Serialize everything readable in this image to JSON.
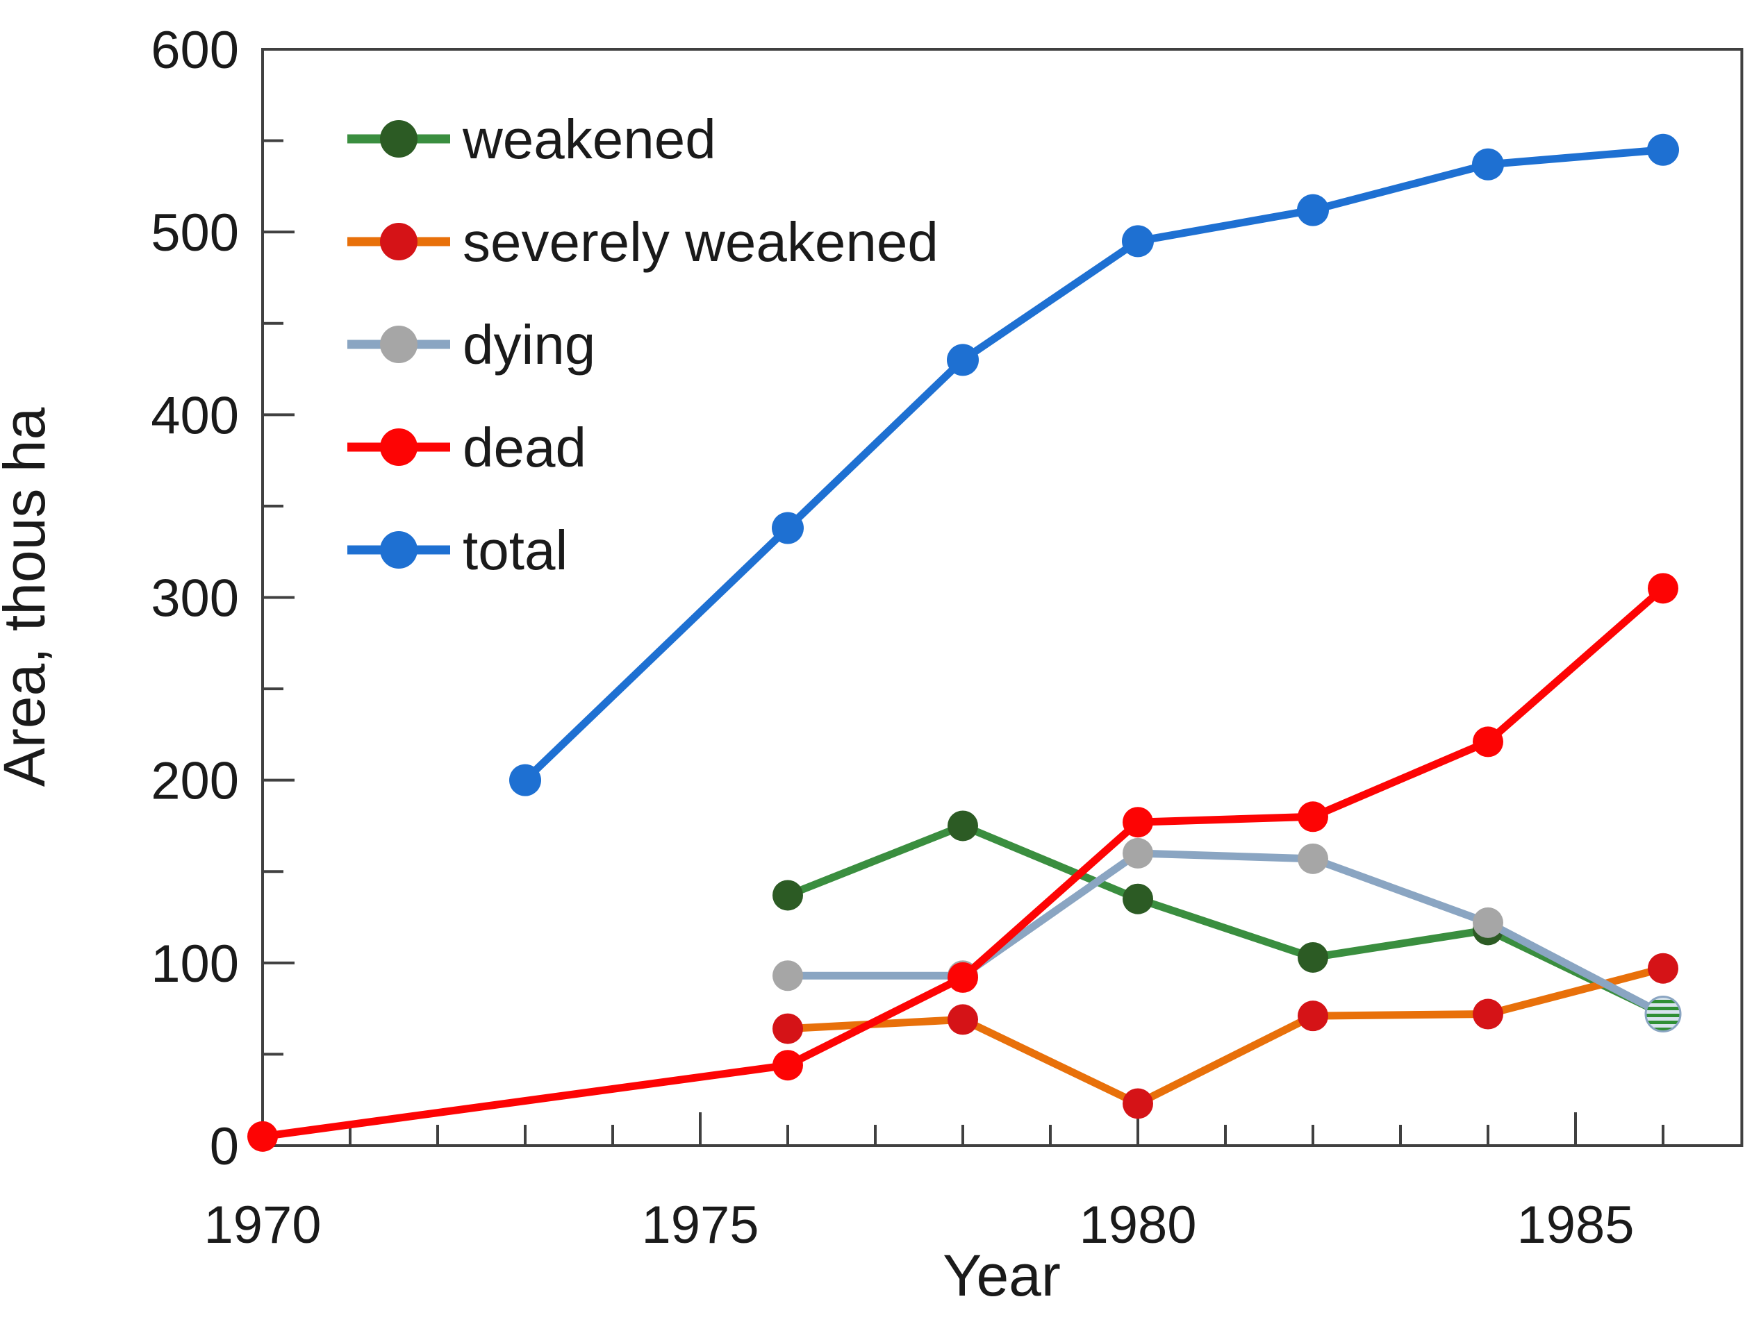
{
  "figure": {
    "background": "#ffffff"
  },
  "chart_data": {
    "type": "line",
    "title": "",
    "xlabel": "Year",
    "ylabel": "Area, thous ha",
    "xlim": [
      1970,
      1986.9
    ],
    "ylim": [
      0,
      600
    ],
    "grid": false,
    "legend_position": "top-left-inside",
    "axis_color": "#404040",
    "text_color": "#1a1a1a",
    "x_tick_years": [
      1970,
      1975,
      1980,
      1985
    ],
    "x_tick_labels": [
      "1970",
      "1975",
      "1980",
      "1985"
    ],
    "y_tick_values": [
      0,
      100,
      200,
      300,
      400,
      500,
      600
    ],
    "x_minor_tick_years": [
      1971,
      1972,
      1973,
      1974,
      1976,
      1977,
      1978,
      1979,
      1981,
      1982,
      1983,
      1984,
      1986
    ],
    "y_minor_tick_values": [
      50,
      150,
      250,
      350,
      450,
      550
    ],
    "series": [
      {
        "name": "weakened",
        "line_color": "#3a8e3f",
        "marker_color": "#2c5b24",
        "points": [
          [
            1976,
            137
          ],
          [
            1978,
            175
          ],
          [
            1980,
            135
          ],
          [
            1982,
            103
          ],
          [
            1984,
            118
          ],
          [
            1986,
            72
          ]
        ]
      },
      {
        "name": "severely weakened",
        "line_color": "#e8700a",
        "marker_color": "#d51317",
        "points": [
          [
            1976,
            64
          ],
          [
            1978,
            69
          ],
          [
            1980,
            23
          ],
          [
            1982,
            71
          ],
          [
            1984,
            72
          ],
          [
            1986,
            97
          ]
        ]
      },
      {
        "name": "dying",
        "line_color": "#8aa5c2",
        "marker_color": "#a6a6a6",
        "points": [
          [
            1976,
            93
          ],
          [
            1978,
            93
          ],
          [
            1980,
            160
          ],
          [
            1982,
            157
          ],
          [
            1984,
            122
          ],
          [
            1986,
            72
          ]
        ]
      },
      {
        "name": "dead",
        "line_color": "#fd0404",
        "marker_color": "#fd0404",
        "points": [
          [
            1970,
            5
          ],
          [
            1976,
            44
          ],
          [
            1978,
            92
          ],
          [
            1980,
            177
          ],
          [
            1982,
            180
          ],
          [
            1984,
            221
          ],
          [
            1986,
            305
          ]
        ]
      },
      {
        "name": "total",
        "line_color": "#1e70d2",
        "marker_color": "#1e70d2",
        "points": [
          [
            1973,
            200
          ],
          [
            1976,
            338
          ],
          [
            1978,
            430
          ],
          [
            1980,
            495
          ],
          [
            1982,
            512
          ],
          [
            1984,
            537
          ],
          [
            1986,
            545
          ]
        ]
      }
    ],
    "merged_marker": {
      "year": 1986,
      "value": 72,
      "series": [
        "weakened",
        "dying"
      ],
      "description": "overlapping final points of weakened and dying drawn as one circle with green horizontal stripes",
      "stripe_color": "#2f8f35",
      "bg_color": "#d7e3ed"
    }
  }
}
